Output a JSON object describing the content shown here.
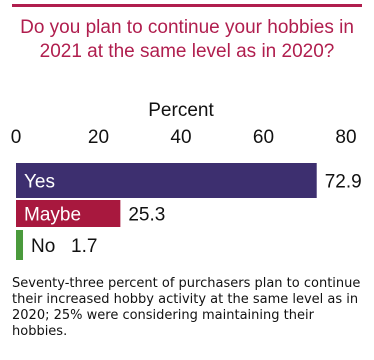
{
  "chart_data": {
    "type": "bar",
    "orientation": "horizontal",
    "title": "Do you plan to continue your hobbies in 2021 at the same level as in 2020?",
    "axis_label": "Percent",
    "xlim": [
      0,
      80
    ],
    "ticks": [
      "0",
      "20",
      "40",
      "60",
      "80"
    ],
    "tick_values": [
      0,
      20,
      40,
      60,
      80
    ],
    "grid": false,
    "legend": "none",
    "categories": [
      "Yes",
      "Maybe",
      "No"
    ],
    "values": [
      72.9,
      25.3,
      1.7
    ],
    "value_labels": [
      "72.9",
      "25.3",
      "1.7"
    ],
    "colors": [
      "#3d2f6f",
      "#a8183e",
      "#4a9a3c"
    ],
    "caption": "Seventy-three percent of purchasers plan to continue their increased hobby activity at the same level as in 2020; 25% were considering maintaining their hobbies."
  }
}
